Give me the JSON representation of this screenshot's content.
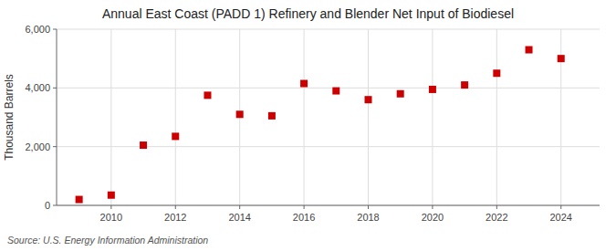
{
  "chart_data": {
    "type": "scatter",
    "title": "Annual East Coast (PADD 1) Refinery and Blender Net Input of Biodiesel",
    "ylabel": "Thousand Barrels",
    "annotations": [
      "Source: U.S. Energy Information Administration"
    ],
    "x": [
      2009,
      2010,
      2011,
      2012,
      2013,
      2014,
      2015,
      2016,
      2017,
      2018,
      2019,
      2020,
      2021,
      2022,
      2023,
      2024
    ],
    "values": [
      200,
      350,
      2050,
      2350,
      3750,
      3100,
      3050,
      4150,
      3900,
      3600,
      3800,
      3950,
      4100,
      4500,
      5300,
      5000
    ],
    "color": "#cc0000",
    "marker": "square",
    "xlim": [
      2008.3,
      2025.2
    ],
    "xticks": [
      2010,
      2012,
      2014,
      2016,
      2018,
      2020,
      2022,
      2024
    ],
    "ylim": [
      0,
      6000
    ],
    "yticks": [
      0,
      {
        "value": 2000,
        "label": "2,000"
      },
      {
        "value": 4000,
        "label": "4,000"
      },
      {
        "value": 6000,
        "label": "6,000"
      }
    ],
    "grid": true
  }
}
